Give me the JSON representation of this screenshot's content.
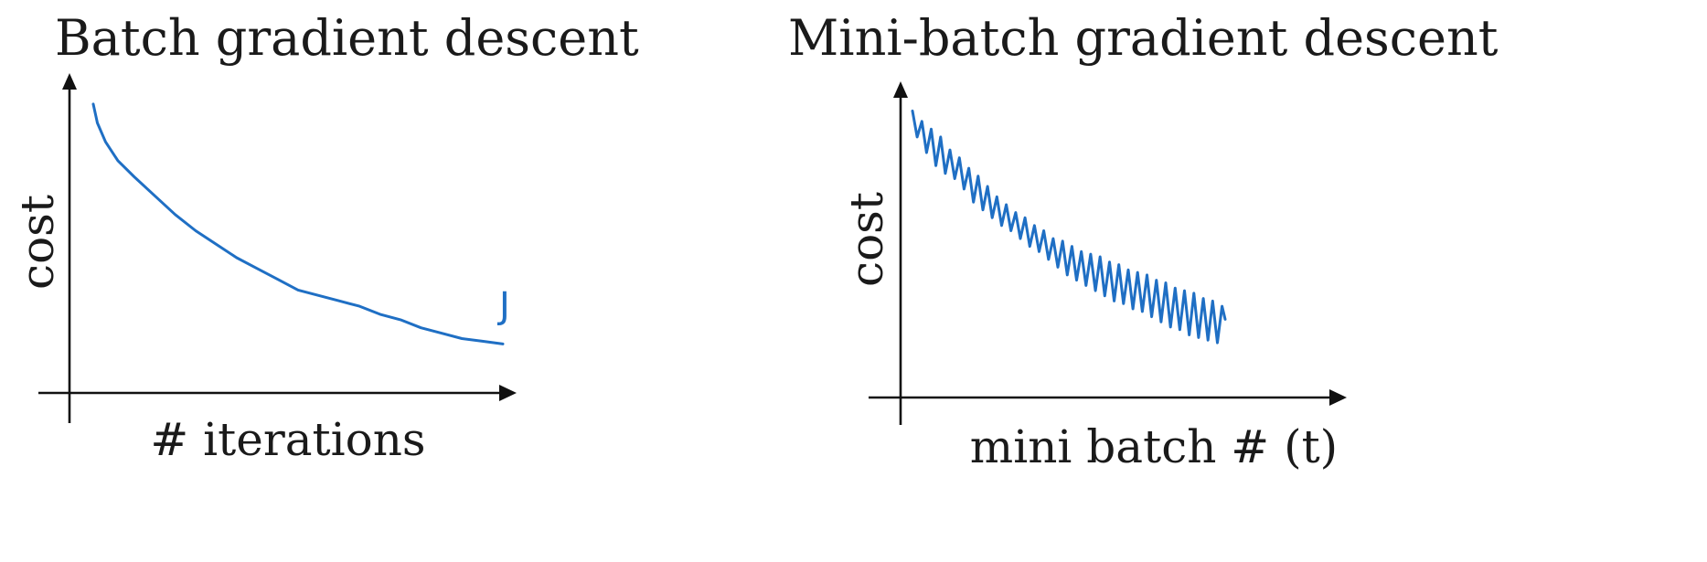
{
  "colors": {
    "curve": "#1f6fc4",
    "axis": "#111111",
    "text": "#1a1a1a"
  },
  "chart_data": [
    {
      "type": "line",
      "title": "Batch gradient descent",
      "xlabel": "# iterations",
      "ylabel": "cost",
      "annotation": "J",
      "grid": false,
      "legend": "none",
      "xlim": [
        0,
        100
      ],
      "ylim": [
        0,
        100
      ],
      "series": [
        {
          "x": [
            0,
            1,
            3,
            6,
            10,
            15,
            20,
            25,
            30,
            35,
            40,
            45,
            50,
            55,
            60,
            65,
            70,
            75,
            80,
            85,
            90,
            95,
            100
          ],
          "values": [
            97,
            90,
            83,
            76,
            70,
            63,
            56,
            50,
            45,
            40,
            36,
            32,
            28,
            26,
            24,
            22,
            19,
            17,
            14,
            12,
            10,
            9,
            8
          ]
        }
      ]
    },
    {
      "type": "line",
      "title": "Mini-batch gradient descent",
      "xlabel": "mini batch # (t)",
      "ylabel": "cost",
      "grid": false,
      "legend": "none",
      "xlim": [
        0,
        100
      ],
      "ylim": [
        0,
        100
      ],
      "series": [
        {
          "x": [
            0,
            1.5,
            3,
            4.5,
            6,
            7.5,
            9,
            10.5,
            12,
            13.5,
            15,
            16.5,
            18,
            19.5,
            21,
            22.5,
            24,
            25.5,
            27,
            28.5,
            30,
            31.5,
            33,
            34.5,
            36,
            37.5,
            39,
            40.5,
            42,
            43.5,
            45,
            46.5,
            48,
            49.5,
            51,
            52.5,
            54,
            55.5,
            57,
            58.5,
            60,
            61.5,
            63,
            64.5,
            66,
            67.5,
            69,
            70.5,
            72,
            73.5,
            75,
            76.5,
            78,
            79.5,
            81,
            82.5,
            84,
            85.5,
            87,
            88.5,
            90,
            91.5,
            93,
            94.5,
            96,
            97.5,
            99,
            100
          ],
          "values": [
            96,
            86,
            92,
            80,
            89,
            75,
            86,
            72,
            81,
            70,
            78,
            66,
            74,
            61,
            71,
            58,
            67,
            55,
            63,
            52,
            60,
            50,
            57,
            47,
            55,
            44,
            52,
            42,
            50,
            39,
            47,
            36,
            46,
            33,
            44,
            31,
            42,
            29,
            41,
            27,
            40,
            25,
            38,
            23,
            37,
            22,
            35,
            20,
            34,
            19,
            33,
            17,
            31,
            15,
            30,
            13,
            28,
            12,
            27,
            10,
            26,
            9,
            24,
            8,
            23,
            7,
            21,
            16
          ]
        }
      ]
    }
  ]
}
